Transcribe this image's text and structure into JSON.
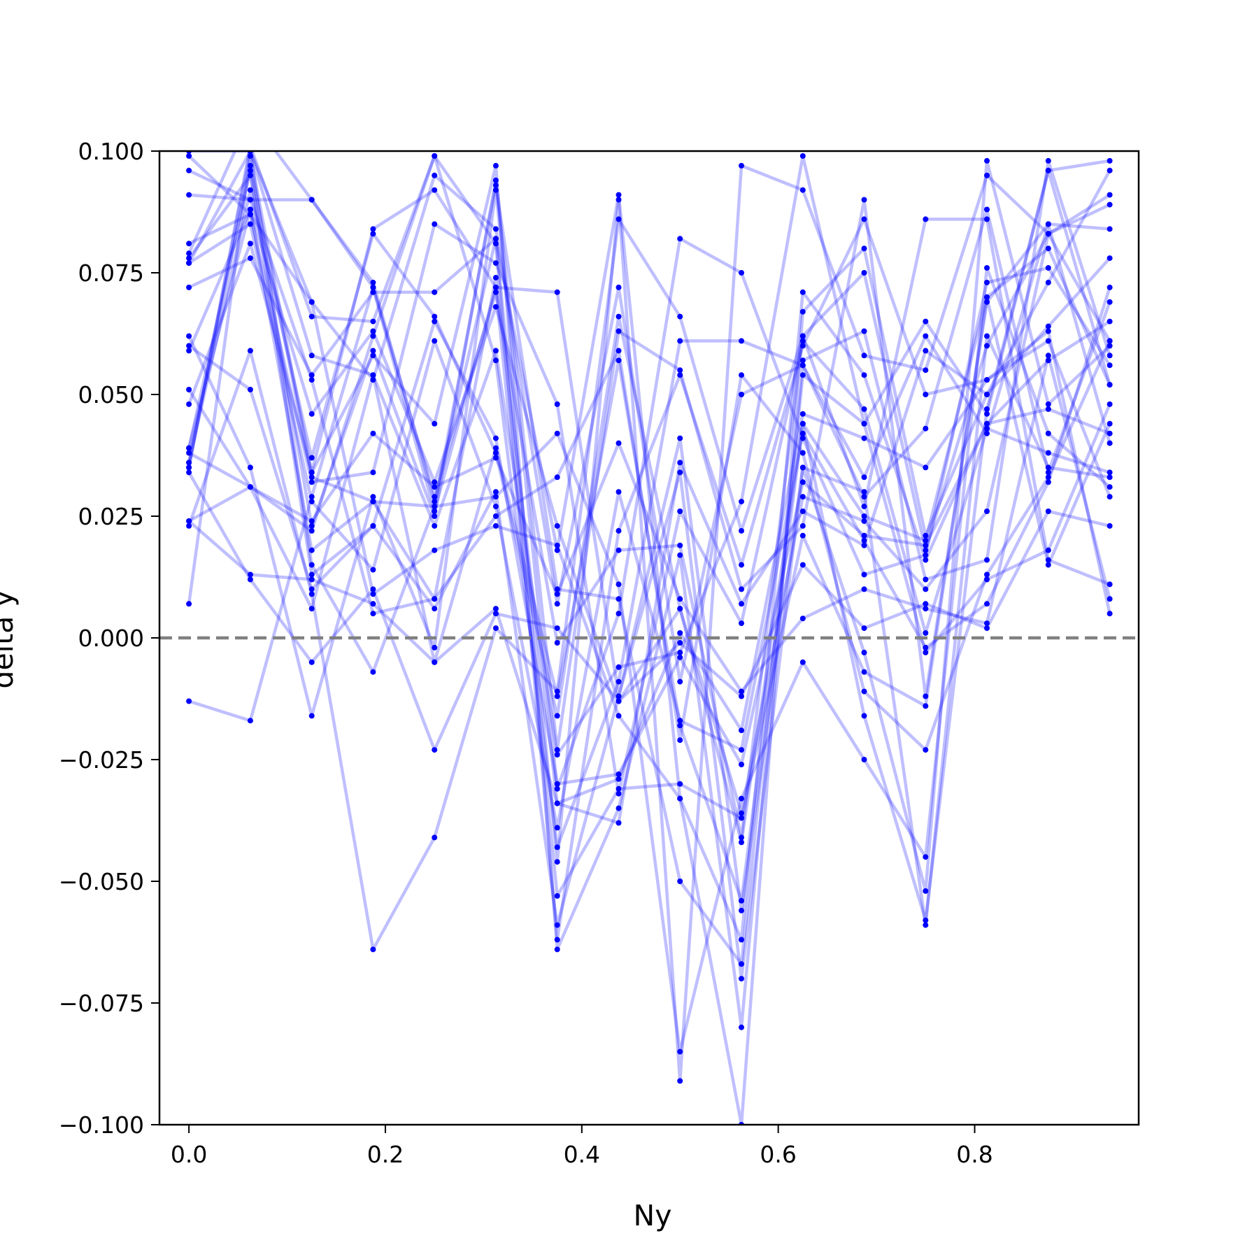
{
  "chart_data": {
    "type": "line",
    "title": "",
    "xlabel": "Ny",
    "ylabel": "delta y",
    "xlim": [
      -0.03,
      0.967
    ],
    "ylim": [
      -0.1,
      0.1
    ],
    "xticks": [
      "0.0",
      "0.2",
      "0.4",
      "0.6",
      "0.8"
    ],
    "xtick_values": [
      0.0,
      0.2,
      0.4,
      0.6,
      0.8
    ],
    "yticks": [
      "0.100",
      "0.075",
      "0.050",
      "0.025",
      "0.000",
      "−0.025",
      "−0.050",
      "−0.075",
      "−0.100"
    ],
    "ytick_values": [
      0.1,
      0.075,
      0.05,
      0.025,
      0.0,
      -0.025,
      -0.05,
      -0.075,
      -0.1
    ],
    "reference_line": {
      "y": 0.0,
      "style": "dashed",
      "color": "#808080"
    },
    "line_color": "#0000ff",
    "marker_color": "#0000ff",
    "line_alpha": 0.25,
    "grid": false,
    "legend": "none",
    "x": [
      0.0,
      0.0625,
      0.125,
      0.1875,
      0.25,
      0.3125,
      0.375,
      0.4375,
      0.5,
      0.5625,
      0.625,
      0.6875,
      0.75,
      0.8125,
      0.875,
      0.9375
    ],
    "series": [
      {
        "values": [
          0.079,
          0.107,
          0.09,
          0.073,
          0.028,
          0.082,
          -0.046,
          0.09,
          -0.091,
          0.097,
          0.092,
          0.058,
          0.055,
          0.095,
          0.083,
          0.061
        ]
      },
      {
        "values": [
          0.051,
          0.031,
          0.022,
          0.062,
          0.099,
          0.081,
          -0.062,
          0.022,
          0.054,
          0.015,
          0.06,
          0.086,
          0.05,
          0.053,
          0.061,
          0.029
        ]
      },
      {
        "values": [
          0.036,
          0.092,
          0.037,
          0.083,
          0.066,
          0.038,
          -0.016,
          0.066,
          0.006,
          -0.042,
          0.044,
          0.025,
          0.02,
          0.07,
          0.08,
          0.052
        ]
      },
      {
        "values": [
          -0.013,
          -0.017,
          0.029,
          0.072,
          0.026,
          0.072,
          0.071,
          -0.012,
          0.041,
          -0.056,
          0.035,
          0.03,
          -0.059,
          0.062,
          0.035,
          0.033
        ]
      },
      {
        "values": [
          0.007,
          0.099,
          0.034,
          0.058,
          0.044,
          0.097,
          -0.064,
          -0.035,
          0.017,
          -0.08,
          0.057,
          0.063,
          0.012,
          0.016,
          0.098,
          0.058
        ]
      },
      {
        "values": [
          0.023,
          0.059,
          0.009,
          -0.064,
          -0.041,
          0.002,
          -0.011,
          0.086,
          0.066,
          0.022,
          0.062,
          0.027,
          0.086,
          0.086,
          0.016,
          0.011
        ]
      },
      {
        "values": [
          0.096,
          0.09,
          0.053,
          0.005,
          0.008,
          0.025,
          0.033,
          0.059,
          -0.021,
          0.054,
          0.038,
          -0.011,
          -0.023,
          0.013,
          0.033,
          0.061
        ]
      },
      {
        "values": [
          0.081,
          0.087,
          0.069,
          0.009,
          0.018,
          0.023,
          0.019,
          -0.016,
          -0.033,
          -0.1,
          0.067,
          0.08,
          0.021,
          0.05,
          0.064,
          0.078
        ]
      },
      {
        "values": [
          0.062,
          0.035,
          -0.016,
          0.029,
          -0.002,
          0.092,
          -0.031,
          0.005,
          0.082,
          0.075,
          0.041,
          0.013,
          0.017,
          0.073,
          0.076,
          0.056
        ]
      },
      {
        "values": [
          0.035,
          0.101,
          0.066,
          0.065,
          0.099,
          0.057,
          -0.043,
          -0.009,
          0.061,
          0.061,
          0.056,
          0.033,
          0.062,
          0.042,
          0.085,
          0.084
        ]
      },
      {
        "values": [
          0.038,
          0.031,
          0.024,
          0.042,
          0.031,
          0.037,
          0.009,
          0.04,
          0.008,
          -0.011,
          0.004,
          0.01,
          0.006,
          0.003,
          0.058,
          0.008
        ]
      },
      {
        "values": [
          0.048,
          0.081,
          0.034,
          0.084,
          0.092,
          0.072,
          -0.053,
          -0.031,
          -0.03,
          -0.037,
          0.021,
          -0.007,
          -0.014,
          0.07,
          0.015,
          0.044
        ]
      },
      {
        "values": [
          0.024,
          0.013,
          0.012,
          0.007,
          -0.005,
          0.006,
          -0.034,
          -0.029,
          0.001,
          -0.019,
          0.046,
          0.041,
          0.035,
          0.053,
          0.063,
          0.005
        ]
      },
      {
        "values": [
          0.039,
          0.096,
          0.013,
          0.023,
          0.006,
          0.03,
          -0.059,
          -0.012,
          0.034,
          -0.07,
          0.035,
          -0.003,
          -0.052,
          0.098,
          0.048,
          0.06
        ]
      },
      {
        "values": [
          0.024,
          0.031,
          0.006,
          0.054,
          0.023,
          0.059,
          -0.024,
          -0.006,
          -0.003,
          0.028,
          0.099,
          0.044,
          0.065,
          0.046,
          0.096,
          0.098
        ]
      },
      {
        "values": [
          0.072,
          0.078,
          0.054,
          0.071,
          0.071,
          0.082,
          0.018,
          0.091,
          -0.033,
          -0.062,
          0.071,
          0.054,
          0.016,
          0.044,
          0.057,
          0.065
        ]
      },
      {
        "values": [
          0.035,
          0.1,
          0.015,
          -0.007,
          0.027,
          0.029,
          0.042,
          0.011,
          -0.085,
          -0.033,
          -0.005,
          -0.025,
          -0.045,
          0.076,
          0.042,
          0.031
        ]
      },
      {
        "values": [
          0.099,
          0.087,
          0.032,
          0.034,
          0.085,
          0.077,
          0.048,
          -0.032,
          0.026,
          0.003,
          0.061,
          0.047,
          0.001,
          0.043,
          0.038,
          0.034
        ]
      },
      {
        "values": [
          0.059,
          0.088,
          0.046,
          0.063,
          0.032,
          0.068,
          0.023,
          -0.013,
          0.006,
          -0.036,
          0.029,
          0.024,
          0.01,
          0.026,
          0.083,
          0.091
        ]
      },
      {
        "values": [
          0.078,
          0.095,
          0.023,
          0.059,
          0.025,
          0.094,
          -0.023,
          0.063,
          0.055,
          0.01,
          0.023,
          0.09,
          -0.012,
          0.069,
          0.085,
          0.04
        ]
      },
      {
        "values": [
          0.039,
          0.088,
          0.018,
          0.028,
          0.008,
          0.074,
          -0.034,
          -0.038,
          0.036,
          0.007,
          0.026,
          0.019,
          0.059,
          0.05,
          0.073,
          0.096
        ]
      },
      {
        "values": [
          0.034,
          0.012,
          -0.005,
          0.01,
          -0.023,
          0.005,
          0.002,
          -0.013,
          -0.001,
          -0.012,
          0.015,
          0.002,
          0.007,
          0.002,
          0.026,
          0.023
        ]
      },
      {
        "values": [
          0.06,
          0.051,
          0.01,
          0.023,
          0.065,
          0.041,
          -0.03,
          -0.028,
          -0.004,
          -0.026,
          0.032,
          0.021,
          0.019,
          0.044,
          0.047,
          0.042
        ]
      },
      {
        "values": [
          0.077,
          0.085,
          0.028,
          0.014,
          0.061,
          0.027,
          -0.039,
          0.03,
          -0.017,
          -0.023,
          0.042,
          0.02,
          -0.002,
          0.007,
          0.032,
          0.072
        ]
      },
      {
        "values": [
          0.1,
          0.1,
          0.069,
          0.053,
          0.095,
          0.084,
          0.007,
          0.072,
          -0.009,
          0.05,
          0.056,
          0.029,
          0.043,
          0.088,
          0.034,
          0.069
        ]
      },
      {
        "values": [
          0.091,
          0.09,
          0.09,
          0.072,
          0.029,
          0.071,
          -0.001,
          0.018,
          0.019,
          -0.041,
          0.062,
          0.075,
          0.018,
          0.06,
          0.083,
          0.089
        ]
      },
      {
        "values": [
          0.077,
          0.1,
          0.058,
          0.054,
          -0.005,
          0.039,
          -0.012,
          0.057,
          -0.018,
          -0.054,
          0.044,
          -0.016,
          -0.058,
          0.047,
          0.096,
          0.052
        ]
      },
      {
        "values": [
          0.036,
          0.097,
          0.033,
          0.028,
          0.027,
          0.093,
          0.01,
          0.008,
          -0.05,
          -0.067,
          0.054,
          0.044,
          -0.003,
          0.012,
          0.018,
          0.048
        ]
      }
    ]
  }
}
